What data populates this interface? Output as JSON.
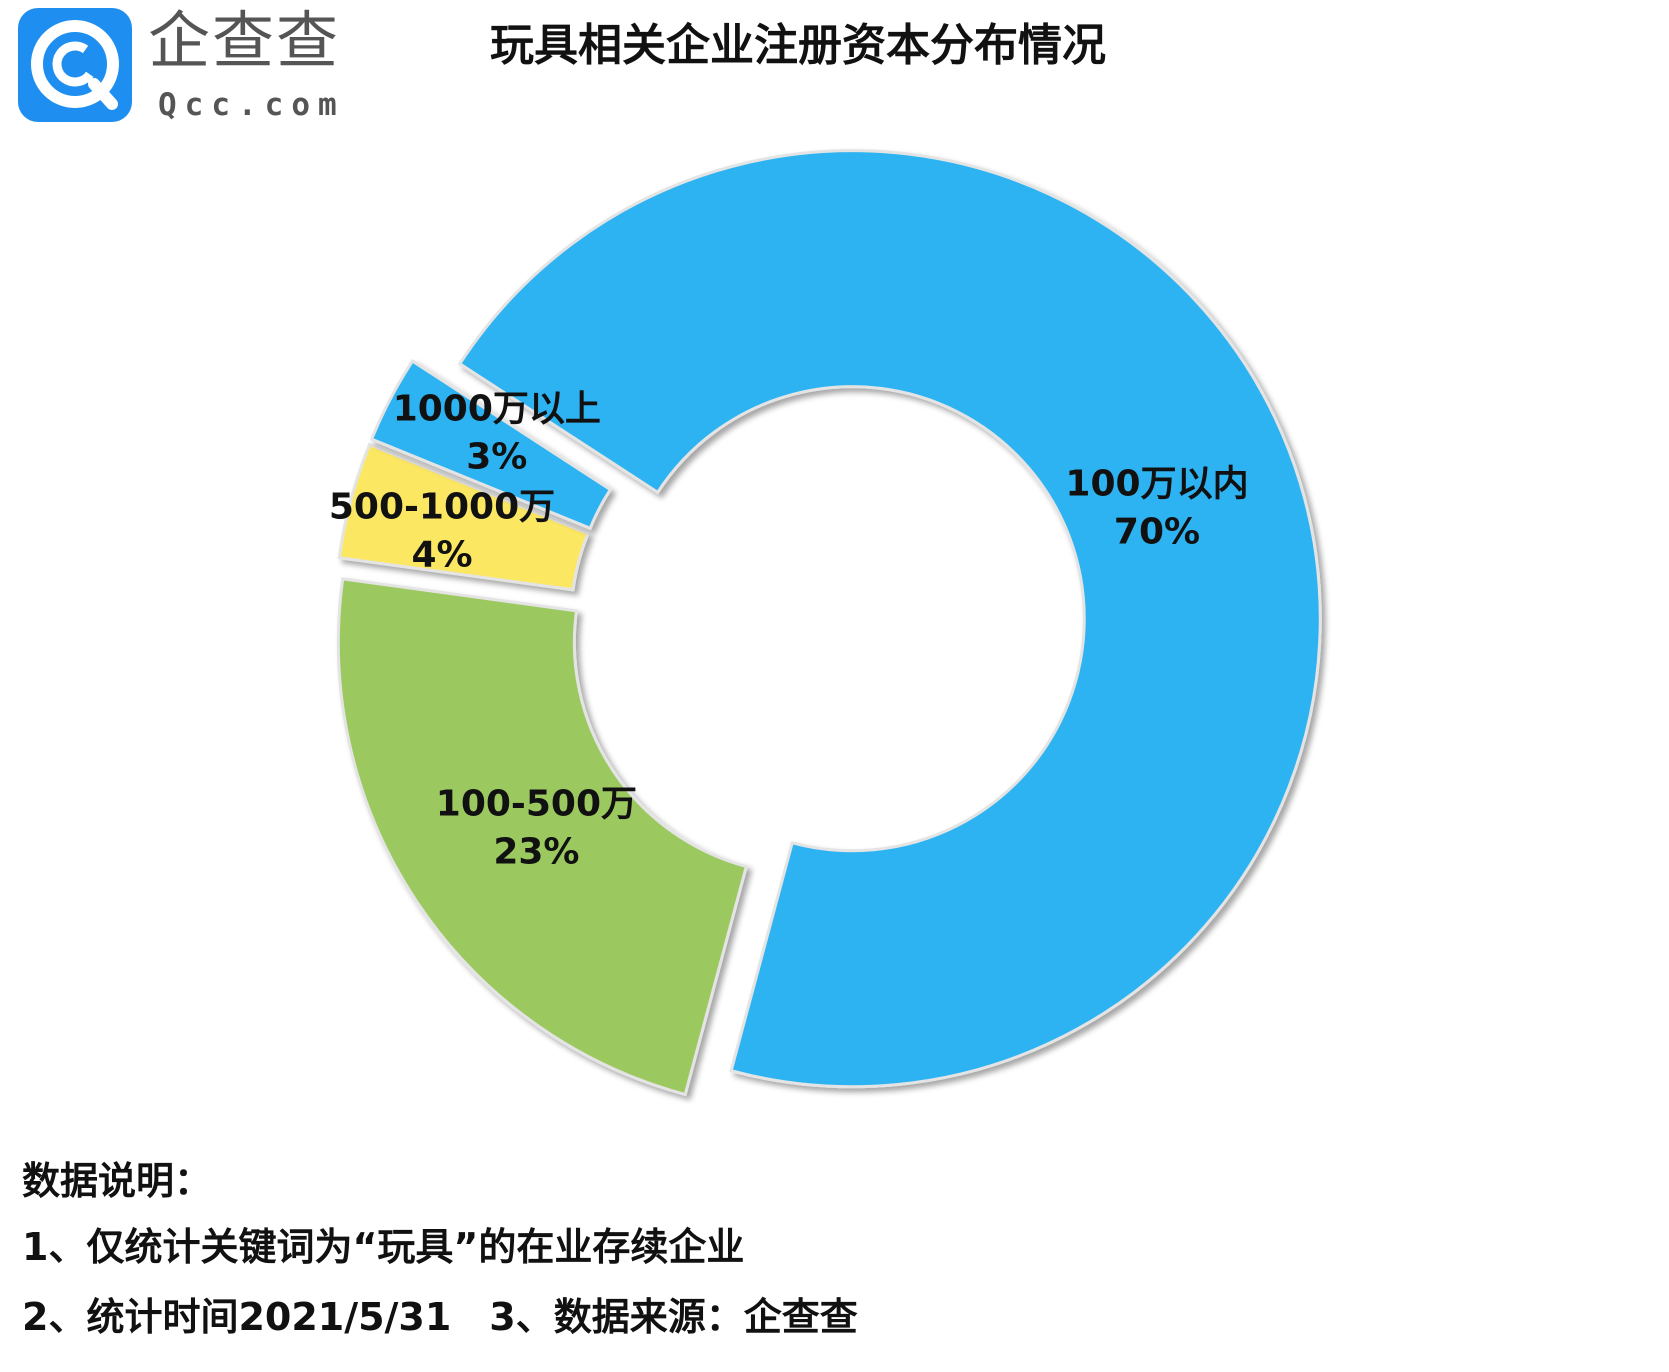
{
  "logo": {
    "name": "企查查",
    "domain": "Qcc.com",
    "tile_color": "#1e8ff0"
  },
  "chart_data": {
    "type": "pie",
    "style": "donut",
    "title": "玩具相关企业注册资本分布情况",
    "categories": [
      "100万以内",
      "100-500万",
      "500-1000万",
      "1000万以上"
    ],
    "values": [
      70,
      23,
      4,
      3
    ],
    "labels": [
      "70%",
      "23%",
      "4%",
      "3%"
    ],
    "colors": [
      "#2db3f2",
      "#9cc95e",
      "#fbe762",
      "#2db3f2"
    ],
    "legend": "none"
  },
  "notes": {
    "heading": "数据说明：",
    "line1": "1、仅统计关键词为“玩具”的在业存续企业",
    "line2": "2、统计时间2021/5/31　3、数据来源：企查查"
  }
}
